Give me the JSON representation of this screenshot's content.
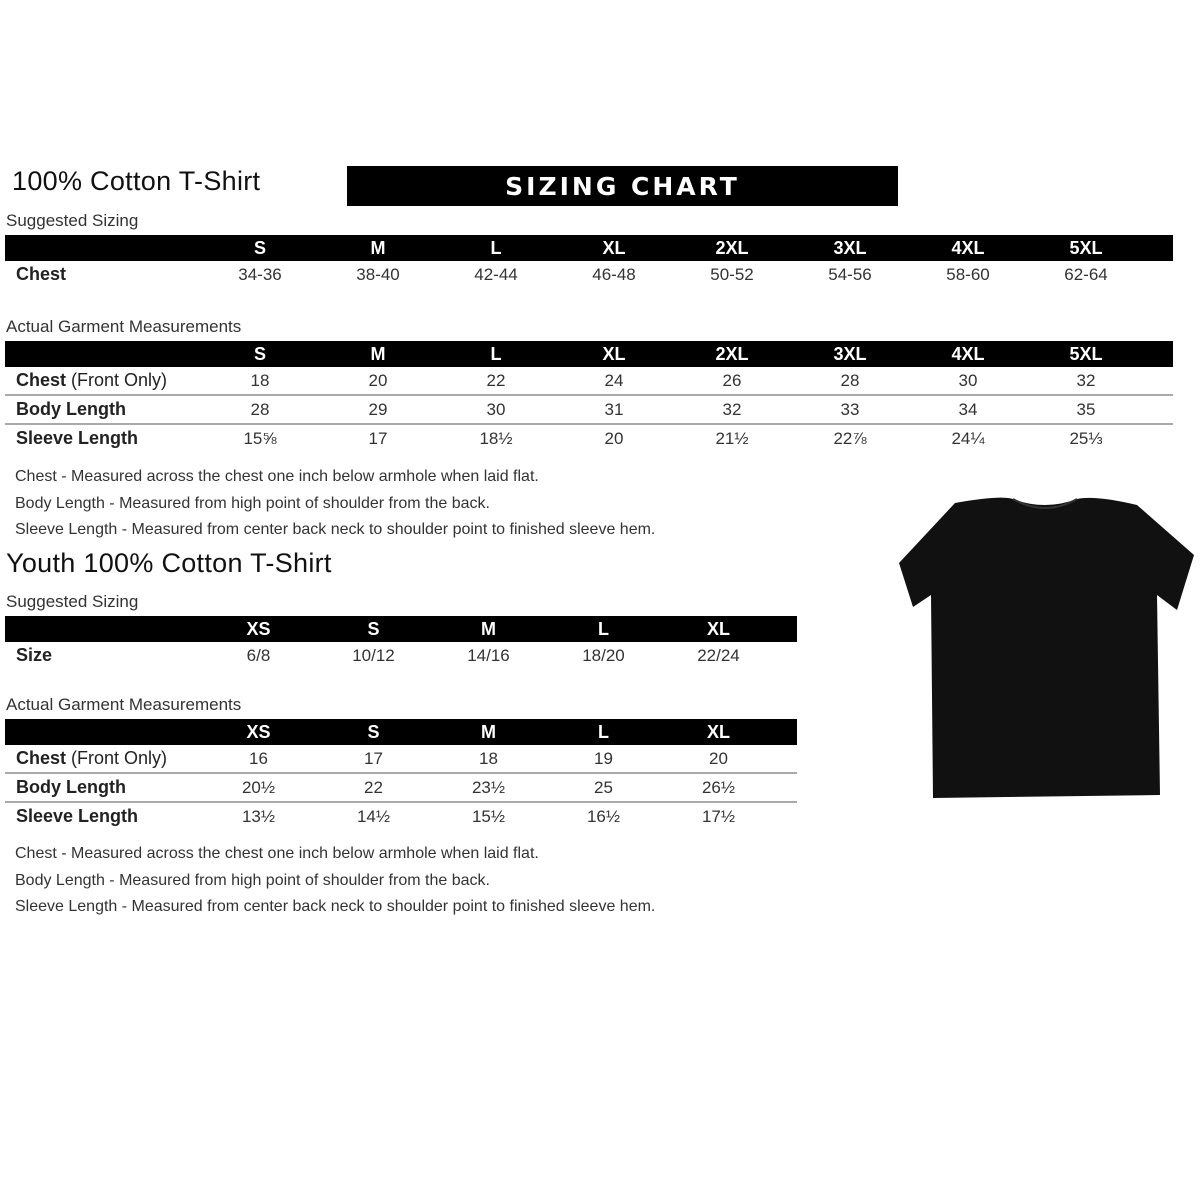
{
  "adult": {
    "title": "100% Cotton T-Shirt",
    "banner": "SIZING CHART",
    "suggested": {
      "label": "Suggested Sizing",
      "sizes": [
        "S",
        "M",
        "L",
        "XL",
        "2XL",
        "3XL",
        "4XL",
        "5XL"
      ],
      "rows": [
        {
          "label": "Chest",
          "note": "",
          "values": [
            "34-36",
            "38-40",
            "42-44",
            "46-48",
            "50-52",
            "54-56",
            "58-60",
            "62-64"
          ]
        }
      ]
    },
    "actual": {
      "label": "Actual Garment Measurements",
      "sizes": [
        "S",
        "M",
        "L",
        "XL",
        "2XL",
        "3XL",
        "4XL",
        "5XL"
      ],
      "rows": [
        {
          "label": "Chest",
          "note": " (Front Only)",
          "values": [
            "18",
            "20",
            "22",
            "24",
            "26",
            "28",
            "30",
            "32"
          ]
        },
        {
          "label": "Body Length",
          "note": "",
          "values": [
            "28",
            "29",
            "30",
            "31",
            "32",
            "33",
            "34",
            "35"
          ]
        },
        {
          "label": "Sleeve Length",
          "note": "",
          "values": [
            "15⅝",
            "17",
            "18½",
            "20",
            "21½",
            "22⅞",
            "24¼",
            "25⅓"
          ]
        }
      ]
    },
    "notes": [
      "Chest - Measured across the chest one inch below armhole when laid flat.",
      "Body Length - Measured from high point of shoulder from the back.",
      "Sleeve Length - Measured from center back neck to shoulder point to finished sleeve hem."
    ]
  },
  "youth": {
    "title": "Youth 100% Cotton T-Shirt",
    "suggested": {
      "label": "Suggested Sizing",
      "sizes": [
        "XS",
        "S",
        "M",
        "L",
        "XL"
      ],
      "rows": [
        {
          "label": "Size",
          "note": "",
          "values": [
            "6/8",
            "10/12",
            "14/16",
            "18/20",
            "22/24"
          ]
        }
      ]
    },
    "actual": {
      "label": "Actual Garment Measurements",
      "sizes": [
        "XS",
        "S",
        "M",
        "L",
        "XL"
      ],
      "rows": [
        {
          "label": "Chest",
          "note": " (Front Only)",
          "values": [
            "16",
            "17",
            "18",
            "19",
            "20"
          ]
        },
        {
          "label": "Body Length",
          "note": "",
          "values": [
            "20½",
            "22",
            "23½",
            "25",
            "26½"
          ]
        },
        {
          "label": "Sleeve Length",
          "note": "",
          "values": [
            "13½",
            "14½",
            "15½",
            "16½",
            "17½"
          ]
        }
      ]
    },
    "notes": [
      "Chest - Measured across the chest one inch below armhole when laid flat.",
      "Body Length - Measured from high point of shoulder from the back.",
      "Sleeve Length - Measured from center back neck to shoulder point to finished sleeve hem."
    ]
  },
  "tshirt_color": "#111111"
}
